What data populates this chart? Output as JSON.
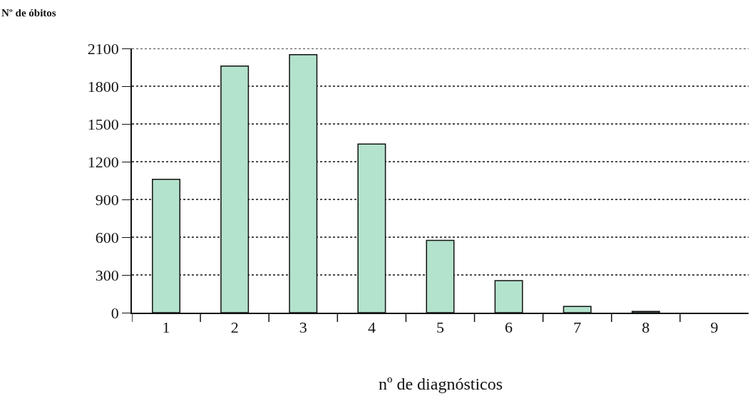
{
  "chart_data": {
    "type": "bar",
    "xlabel": "nº de diagnósticos",
    "ylabel": "Nº de óbitos",
    "categories": [
      "1",
      "2",
      "3",
      "4",
      "5",
      "6",
      "7",
      "8",
      "9"
    ],
    "values": [
      1060,
      1960,
      2050,
      1340,
      575,
      255,
      50,
      10,
      null
    ],
    "color": "#b3e3cc",
    "ylim": [
      0,
      2100
    ],
    "yticks": [
      0,
      300,
      600,
      900,
      1200,
      1500,
      1800,
      2100
    ],
    "grid": "y",
    "legend": false
  }
}
